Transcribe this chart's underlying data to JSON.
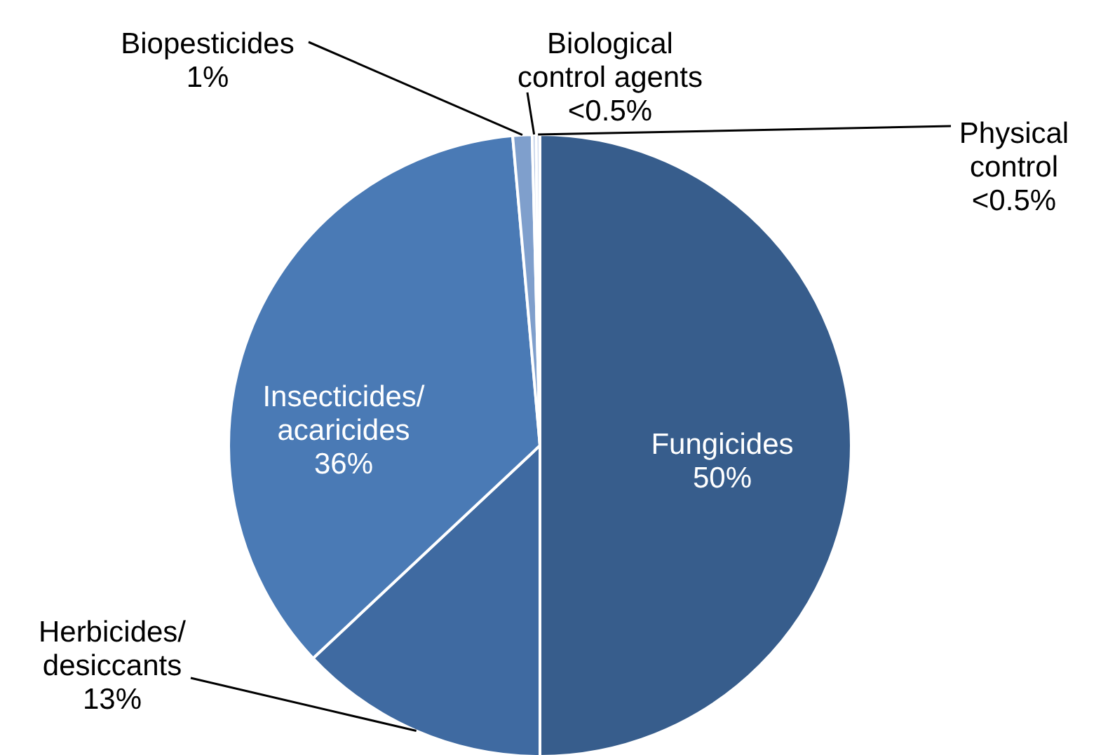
{
  "chart_data": {
    "type": "pie",
    "categories": [
      "Fungicides",
      "Herbicides/desiccants",
      "Insecticides/acaricides",
      "Biopesticides",
      "Biological control agents",
      "Physical control"
    ],
    "values": [
      50,
      13,
      35.6,
      1,
      0.2,
      0.2
    ],
    "value_labels": [
      "50%",
      "13%",
      "36%",
      "1%",
      "<0.5%",
      "<0.5%"
    ],
    "colors": [
      "#375d8c",
      "#3f6aa1",
      "#4a7ab5",
      "#7f9fcc",
      "#a9bde0",
      "#d0dbee"
    ]
  }
}
